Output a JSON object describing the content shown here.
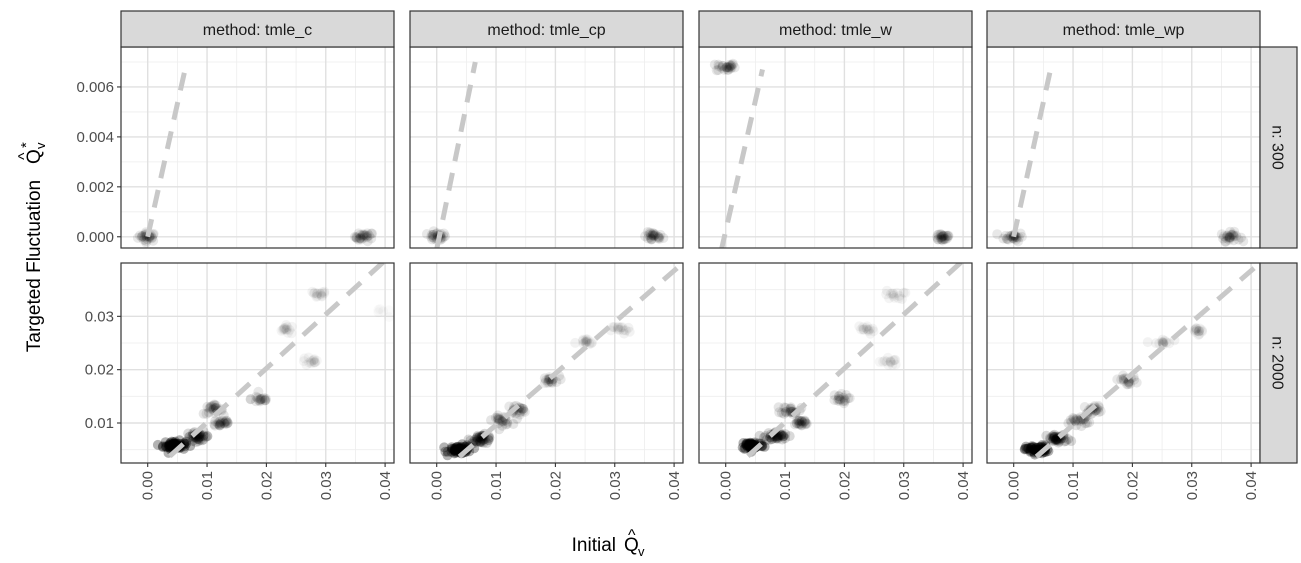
{
  "chart_data": {
    "type": "scatter",
    "xlabel": "Initial",
    "ylabel": "Targeted Fluctuation",
    "axis_symbol": {
      "x": "Q̂ᵥ",
      "y": "Q̂ᵥ*"
    },
    "grid": true,
    "x_axis": {
      "lim": [
        -0.0045,
        0.0415
      ],
      "ticks": [
        0.0,
        0.01,
        0.02,
        0.03,
        0.04
      ],
      "tick_labels": [
        "0.00",
        "0.01",
        "0.02",
        "0.03",
        "0.04"
      ]
    },
    "facet_columns": [
      "method: tmle_c",
      "method: tmle_cp",
      "method: tmle_w",
      "method: tmle_wp"
    ],
    "facet_rows": [
      {
        "label": "n: 300",
        "ylim": [
          -0.00045,
          0.0076
        ],
        "yticks": [
          0.0,
          0.002,
          0.004,
          0.006
        ],
        "ytick_labels": [
          "0.000",
          "0.002",
          "0.004",
          "0.006"
        ]
      },
      {
        "label": "n: 2000",
        "ylim": [
          0.0025,
          0.04
        ],
        "yticks": [
          0.01,
          0.02,
          0.03
        ],
        "ytick_labels": [
          "0.01",
          "0.02",
          "0.03"
        ]
      }
    ],
    "reference_line": {
      "style": "dashed",
      "color": "#c8c8c8",
      "description": "fitted reference line per panel"
    },
    "panels": [
      {
        "row": 0,
        "col": 0,
        "line": [
          [
            0.0,
            0.0
          ],
          [
            0.0062,
            0.0066
          ]
        ],
        "clusters": [
          {
            "x": 0.0,
            "y": 0.0,
            "n": 26,
            "alpha": 0.09
          },
          {
            "x": 0.0365,
            "y": 0.0,
            "n": 26,
            "alpha": 0.09
          }
        ]
      },
      {
        "row": 0,
        "col": 1,
        "line": [
          [
            0.0,
            -0.0005
          ],
          [
            0.0065,
            0.007
          ]
        ],
        "clusters": [
          {
            "x": 0.0,
            "y": 0.0,
            "n": 26,
            "alpha": 0.09
          },
          {
            "x": 0.0365,
            "y": 0.0,
            "n": 26,
            "alpha": 0.09
          }
        ]
      },
      {
        "row": 0,
        "col": 2,
        "line": [
          [
            -0.0008,
            -0.0006
          ],
          [
            0.0062,
            0.0067
          ]
        ],
        "clusters": [
          {
            "x": 0.0,
            "y": 0.0068,
            "n": 26,
            "alpha": 0.09
          },
          {
            "x": 0.0365,
            "y": 0.0,
            "n": 26,
            "alpha": 0.09
          }
        ]
      },
      {
        "row": 0,
        "col": 3,
        "line": [
          [
            0.0,
            0.0
          ],
          [
            0.0063,
            0.0068
          ]
        ],
        "clusters": [
          {
            "x": 0.0,
            "y": 0.0,
            "n": 26,
            "alpha": 0.09
          },
          {
            "x": 0.0365,
            "y": 0.0,
            "n": 26,
            "alpha": 0.09
          }
        ]
      },
      {
        "row": 1,
        "col": 0,
        "line": [
          [
            0.0,
            0.0
          ],
          [
            0.0415,
            0.042
          ]
        ],
        "clusters": [
          {
            "x": 0.0045,
            "y": 0.0058,
            "n": 60,
            "alpha": 0.3
          },
          {
            "x": 0.0085,
            "y": 0.0075,
            "n": 40,
            "alpha": 0.15
          },
          {
            "x": 0.011,
            "y": 0.0125,
            "n": 22,
            "alpha": 0.1
          },
          {
            "x": 0.0125,
            "y": 0.01,
            "n": 22,
            "alpha": 0.1
          },
          {
            "x": 0.019,
            "y": 0.0145,
            "n": 18,
            "alpha": 0.09
          },
          {
            "x": 0.0235,
            "y": 0.0275,
            "n": 14,
            "alpha": 0.045
          },
          {
            "x": 0.0285,
            "y": 0.034,
            "n": 14,
            "alpha": 0.045
          },
          {
            "x": 0.0275,
            "y": 0.0215,
            "n": 14,
            "alpha": 0.04
          },
          {
            "x": 0.0395,
            "y": 0.0305,
            "n": 6,
            "alpha": 0.02
          }
        ]
      },
      {
        "row": 1,
        "col": 1,
        "line": [
          [
            0.0,
            0.0
          ],
          [
            0.0415,
            0.04
          ]
        ],
        "clusters": [
          {
            "x": 0.004,
            "y": 0.005,
            "n": 60,
            "alpha": 0.3
          },
          {
            "x": 0.0075,
            "y": 0.007,
            "n": 40,
            "alpha": 0.15
          },
          {
            "x": 0.011,
            "y": 0.0105,
            "n": 22,
            "alpha": 0.1
          },
          {
            "x": 0.0135,
            "y": 0.0125,
            "n": 22,
            "alpha": 0.09
          },
          {
            "x": 0.019,
            "y": 0.018,
            "n": 18,
            "alpha": 0.09
          },
          {
            "x": 0.025,
            "y": 0.025,
            "n": 14,
            "alpha": 0.05
          },
          {
            "x": 0.031,
            "y": 0.0275,
            "n": 14,
            "alpha": 0.05
          }
        ]
      },
      {
        "row": 1,
        "col": 2,
        "line": [
          [
            0.0,
            0.0
          ],
          [
            0.0415,
            0.042
          ]
        ],
        "clusters": [
          {
            "x": 0.0045,
            "y": 0.0058,
            "n": 60,
            "alpha": 0.3
          },
          {
            "x": 0.0085,
            "y": 0.0075,
            "n": 40,
            "alpha": 0.15
          },
          {
            "x": 0.011,
            "y": 0.0125,
            "n": 22,
            "alpha": 0.1
          },
          {
            "x": 0.0125,
            "y": 0.01,
            "n": 22,
            "alpha": 0.1
          },
          {
            "x": 0.019,
            "y": 0.0145,
            "n": 18,
            "alpha": 0.09
          },
          {
            "x": 0.0235,
            "y": 0.0275,
            "n": 14,
            "alpha": 0.045
          },
          {
            "x": 0.0285,
            "y": 0.034,
            "n": 14,
            "alpha": 0.045
          },
          {
            "x": 0.0275,
            "y": 0.0215,
            "n": 14,
            "alpha": 0.04
          }
        ]
      },
      {
        "row": 1,
        "col": 3,
        "line": [
          [
            0.0,
            0.0
          ],
          [
            0.0415,
            0.04
          ]
        ],
        "clusters": [
          {
            "x": 0.004,
            "y": 0.005,
            "n": 60,
            "alpha": 0.3
          },
          {
            "x": 0.0075,
            "y": 0.007,
            "n": 40,
            "alpha": 0.15
          },
          {
            "x": 0.011,
            "y": 0.0105,
            "n": 22,
            "alpha": 0.1
          },
          {
            "x": 0.0135,
            "y": 0.0125,
            "n": 22,
            "alpha": 0.09
          },
          {
            "x": 0.019,
            "y": 0.018,
            "n": 18,
            "alpha": 0.09
          },
          {
            "x": 0.025,
            "y": 0.025,
            "n": 14,
            "alpha": 0.05
          },
          {
            "x": 0.031,
            "y": 0.0275,
            "n": 14,
            "alpha": 0.05
          }
        ]
      }
    ]
  }
}
